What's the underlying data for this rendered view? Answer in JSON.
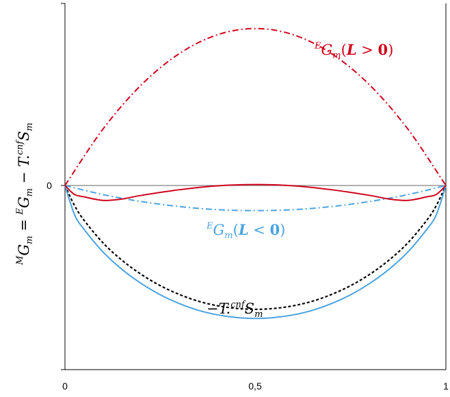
{
  "chart_data": {
    "type": "line",
    "xlim": [
      0,
      1
    ],
    "ylim": [
      -1.07,
      1.16
    ],
    "grid": false,
    "x_ticks": [
      "0",
      "0,5",
      "1"
    ],
    "y_ticks": [
      "0"
    ],
    "ylabel": {
      "parts": [
        "M",
        "G",
        "m",
        " = ",
        "E",
        "G",
        "m",
        " − T.",
        "cnf",
        "S",
        "m"
      ]
    },
    "series": [
      {
        "key": "eg_pos",
        "style": "dashdot",
        "color": "#d0021b",
        "label_parts": [
          "E",
          "G",
          "m",
          "(",
          "L",
          " > ",
          "0",
          ")"
        ],
        "points": [
          [
            0,
            0
          ],
          [
            0.1,
            0.36
          ],
          [
            0.2,
            0.64
          ],
          [
            0.3,
            0.84
          ],
          [
            0.4,
            0.96
          ],
          [
            0.5,
            1.0
          ],
          [
            0.6,
            0.96
          ],
          [
            0.7,
            0.84
          ],
          [
            0.8,
            0.64
          ],
          [
            0.9,
            0.36
          ],
          [
            1,
            0
          ]
        ]
      },
      {
        "key": "eg_neg",
        "style": "dashdot",
        "color": "#4aa3e0",
        "label_parts": [
          "E",
          "G",
          "m",
          "(",
          "L",
          " < ",
          "0",
          ")"
        ],
        "points": [
          [
            0,
            0
          ],
          [
            0.1,
            -0.058
          ],
          [
            0.2,
            -0.102
          ],
          [
            0.3,
            -0.134
          ],
          [
            0.4,
            -0.154
          ],
          [
            0.5,
            -0.16
          ],
          [
            0.6,
            -0.154
          ],
          [
            0.7,
            -0.134
          ],
          [
            0.8,
            -0.102
          ],
          [
            0.9,
            -0.058
          ],
          [
            1,
            0
          ]
        ]
      },
      {
        "key": "ts",
        "style": "dashed",
        "color": "#000000",
        "label_parts": [
          "−T.",
          "cnf",
          "S",
          "m"
        ],
        "points": [
          [
            0,
            0
          ],
          [
            0.025,
            -0.127
          ],
          [
            0.05,
            -0.221
          ],
          [
            0.1,
            -0.366
          ],
          [
            0.15,
            -0.477
          ],
          [
            0.2,
            -0.566
          ],
          [
            0.25,
            -0.638
          ],
          [
            0.3,
            -0.694
          ],
          [
            0.35,
            -0.737
          ],
          [
            0.4,
            -0.766
          ],
          [
            0.45,
            -0.783
          ],
          [
            0.5,
            -0.789
          ],
          [
            0.55,
            -0.783
          ],
          [
            0.6,
            -0.766
          ],
          [
            0.65,
            -0.737
          ],
          [
            0.7,
            -0.694
          ],
          [
            0.75,
            -0.638
          ],
          [
            0.8,
            -0.566
          ],
          [
            0.85,
            -0.477
          ],
          [
            0.9,
            -0.366
          ],
          [
            0.95,
            -0.221
          ],
          [
            0.975,
            -0.127
          ],
          [
            1,
            0
          ]
        ]
      },
      {
        "key": "mg_blue",
        "style": "solid",
        "color": "#4aa3e0",
        "label_parts": [],
        "points": [
          [
            0,
            0
          ],
          [
            0.025,
            -0.185
          ],
          [
            0.05,
            -0.279
          ],
          [
            0.1,
            -0.424
          ],
          [
            0.15,
            -0.535
          ],
          [
            0.2,
            -0.624
          ],
          [
            0.25,
            -0.696
          ],
          [
            0.3,
            -0.752
          ],
          [
            0.35,
            -0.795
          ],
          [
            0.4,
            -0.824
          ],
          [
            0.45,
            -0.841
          ],
          [
            0.5,
            -0.847
          ],
          [
            0.55,
            -0.841
          ],
          [
            0.6,
            -0.824
          ],
          [
            0.65,
            -0.795
          ],
          [
            0.7,
            -0.752
          ],
          [
            0.75,
            -0.696
          ],
          [
            0.8,
            -0.624
          ],
          [
            0.85,
            -0.535
          ],
          [
            0.9,
            -0.424
          ],
          [
            0.95,
            -0.279
          ],
          [
            0.975,
            -0.185
          ],
          [
            1,
            0
          ]
        ]
      },
      {
        "key": "mg_red",
        "style": "solid",
        "color": "#d0021b",
        "label_parts": [],
        "points": [
          [
            0,
            0
          ],
          [
            0.025,
            -0.057
          ],
          [
            0.05,
            -0.072
          ],
          [
            0.1,
            -0.095
          ],
          [
            0.15,
            -0.086
          ],
          [
            0.2,
            -0.063
          ],
          [
            0.3,
            -0.027
          ],
          [
            0.4,
            -0.002
          ],
          [
            0.5,
            0.006
          ],
          [
            0.6,
            -0.002
          ],
          [
            0.7,
            -0.027
          ],
          [
            0.8,
            -0.063
          ],
          [
            0.85,
            -0.086
          ],
          [
            0.9,
            -0.095
          ],
          [
            0.95,
            -0.072
          ],
          [
            0.975,
            -0.057
          ],
          [
            1,
            0
          ]
        ]
      }
    ]
  }
}
